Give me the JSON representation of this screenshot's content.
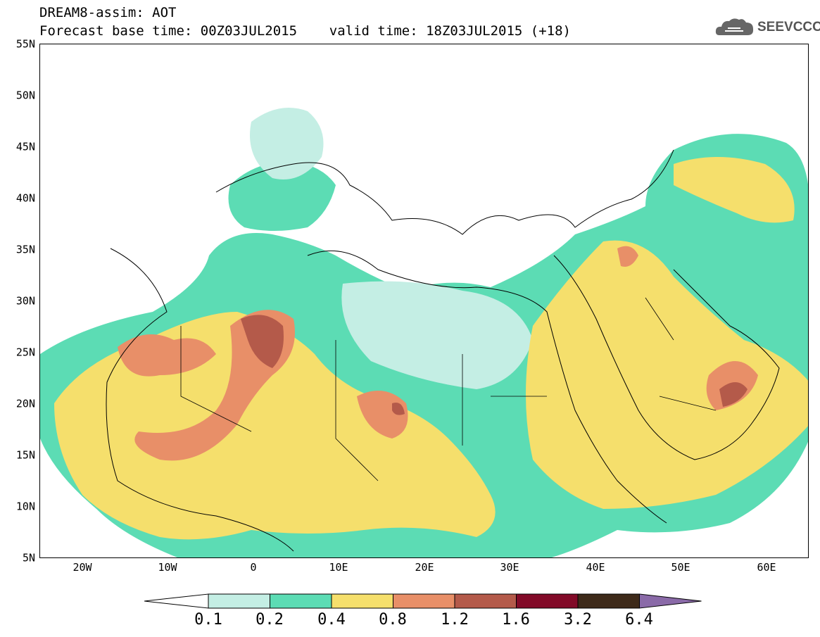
{
  "header": {
    "line1": "DREAM8-assim: AOT",
    "line2": "Forecast base time: 00Z03JUL2015    valid time: 18Z03JUL2015 (+18)"
  },
  "logo": {
    "text": "SEEVCCC",
    "icon": "cloud-icon",
    "color": "#555555"
  },
  "map": {
    "variable": "AOT",
    "lat_range": [
      5,
      55
    ],
    "lon_range": [
      -25,
      65
    ],
    "y_ticks": [
      "55N",
      "50N",
      "45N",
      "40N",
      "35N",
      "30N",
      "25N",
      "20N",
      "15N",
      "10N",
      "5N"
    ],
    "x_ticks": [
      "20W",
      "10W",
      "0",
      "10E",
      "20E",
      "30E",
      "40E",
      "50E",
      "60E"
    ]
  },
  "colorbar": {
    "levels": [
      "0.1",
      "0.2",
      "0.4",
      "0.8",
      "1.2",
      "1.6",
      "3.2",
      "6.4"
    ],
    "colors": [
      "#ffffff",
      "#c4eee4",
      "#5cdcb4",
      "#f5df6c",
      "#e88f68",
      "#b45a4a",
      "#820a28",
      "#3e2a1a",
      "#8a6aa8"
    ]
  }
}
